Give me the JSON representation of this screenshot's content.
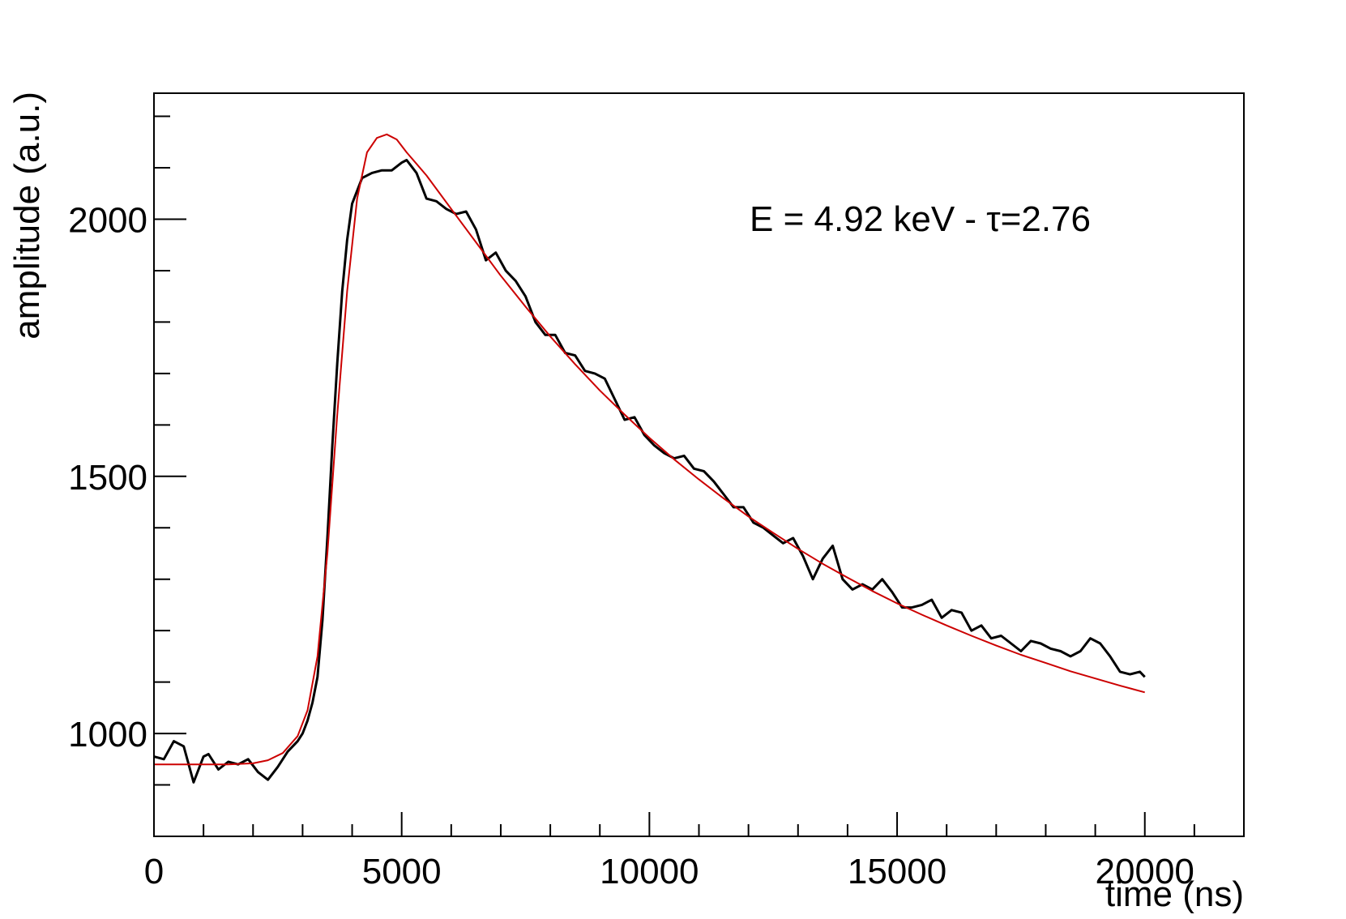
{
  "chart_data": {
    "type": "line",
    "title": "",
    "xlabel": "time (ns)",
    "ylabel": "amplitude (a.u.)",
    "xlim": [
      0,
      22000
    ],
    "ylim": [
      800,
      2245
    ],
    "x_major_ticks": [
      0,
      5000,
      10000,
      15000,
      20000
    ],
    "x_tick_labels": [
      "0",
      "5000",
      "10000",
      "15000",
      "20000"
    ],
    "y_major_ticks": [
      1000,
      1500,
      2000
    ],
    "y_tick_labels": [
      "1000",
      "1500",
      "2000"
    ],
    "annotation": "E = 4.92 keV - τ=2.76",
    "grid": false,
    "series": [
      {
        "role": "data",
        "color": "#000000",
        "points": [
          [
            0,
            955
          ],
          [
            200,
            950
          ],
          [
            400,
            985
          ],
          [
            600,
            975
          ],
          [
            800,
            905
          ],
          [
            1000,
            955
          ],
          [
            1100,
            960
          ],
          [
            1300,
            930
          ],
          [
            1500,
            945
          ],
          [
            1700,
            940
          ],
          [
            1900,
            950
          ],
          [
            2100,
            925
          ],
          [
            2300,
            910
          ],
          [
            2500,
            935
          ],
          [
            2700,
            965
          ],
          [
            2900,
            985
          ],
          [
            3000,
            1000
          ],
          [
            3100,
            1025
          ],
          [
            3200,
            1060
          ],
          [
            3300,
            1110
          ],
          [
            3400,
            1220
          ],
          [
            3500,
            1380
          ],
          [
            3600,
            1560
          ],
          [
            3700,
            1720
          ],
          [
            3800,
            1860
          ],
          [
            3900,
            1960
          ],
          [
            4000,
            2030
          ],
          [
            4200,
            2080
          ],
          [
            4400,
            2090
          ],
          [
            4600,
            2095
          ],
          [
            4800,
            2095
          ],
          [
            5000,
            2110
          ],
          [
            5100,
            2115
          ],
          [
            5300,
            2090
          ],
          [
            5500,
            2040
          ],
          [
            5700,
            2035
          ],
          [
            5900,
            2020
          ],
          [
            6100,
            2010
          ],
          [
            6300,
            2015
          ],
          [
            6500,
            1980
          ],
          [
            6700,
            1920
          ],
          [
            6900,
            1935
          ],
          [
            7100,
            1900
          ],
          [
            7300,
            1880
          ],
          [
            7500,
            1850
          ],
          [
            7700,
            1800
          ],
          [
            7900,
            1775
          ],
          [
            8100,
            1775
          ],
          [
            8300,
            1740
          ],
          [
            8500,
            1735
          ],
          [
            8700,
            1705
          ],
          [
            8900,
            1700
          ],
          [
            9100,
            1690
          ],
          [
            9300,
            1650
          ],
          [
            9500,
            1610
          ],
          [
            9700,
            1615
          ],
          [
            9900,
            1580
          ],
          [
            10100,
            1560
          ],
          [
            10300,
            1545
          ],
          [
            10500,
            1535
          ],
          [
            10700,
            1540
          ],
          [
            10900,
            1515
          ],
          [
            11100,
            1510
          ],
          [
            11300,
            1490
          ],
          [
            11500,
            1465
          ],
          [
            11700,
            1440
          ],
          [
            11900,
            1440
          ],
          [
            12100,
            1410
          ],
          [
            12300,
            1400
          ],
          [
            12500,
            1385
          ],
          [
            12700,
            1370
          ],
          [
            12900,
            1380
          ],
          [
            13100,
            1345
          ],
          [
            13300,
            1300
          ],
          [
            13500,
            1340
          ],
          [
            13700,
            1365
          ],
          [
            13900,
            1300
          ],
          [
            14100,
            1280
          ],
          [
            14300,
            1290
          ],
          [
            14500,
            1280
          ],
          [
            14700,
            1300
          ],
          [
            14900,
            1275
          ],
          [
            15100,
            1245
          ],
          [
            15300,
            1245
          ],
          [
            15500,
            1250
          ],
          [
            15700,
            1260
          ],
          [
            15900,
            1225
          ],
          [
            16100,
            1240
          ],
          [
            16300,
            1235
          ],
          [
            16500,
            1200
          ],
          [
            16700,
            1210
          ],
          [
            16900,
            1185
          ],
          [
            17100,
            1190
          ],
          [
            17300,
            1175
          ],
          [
            17500,
            1160
          ],
          [
            17700,
            1180
          ],
          [
            17900,
            1175
          ],
          [
            18100,
            1165
          ],
          [
            18300,
            1160
          ],
          [
            18500,
            1150
          ],
          [
            18700,
            1160
          ],
          [
            18900,
            1185
          ],
          [
            19100,
            1175
          ],
          [
            19300,
            1150
          ],
          [
            19500,
            1120
          ],
          [
            19700,
            1115
          ],
          [
            19900,
            1120
          ],
          [
            20000,
            1110
          ]
        ]
      },
      {
        "role": "fit",
        "color": "#cc0000",
        "points": [
          [
            0,
            940
          ],
          [
            500,
            940
          ],
          [
            1000,
            940
          ],
          [
            1500,
            940
          ],
          [
            2000,
            942
          ],
          [
            2300,
            948
          ],
          [
            2600,
            962
          ],
          [
            2900,
            995
          ],
          [
            3100,
            1045
          ],
          [
            3300,
            1150
          ],
          [
            3500,
            1350
          ],
          [
            3700,
            1620
          ],
          [
            3900,
            1860
          ],
          [
            4100,
            2040
          ],
          [
            4300,
            2130
          ],
          [
            4500,
            2158
          ],
          [
            4700,
            2165
          ],
          [
            4900,
            2155
          ],
          [
            5100,
            2130
          ],
          [
            5500,
            2085
          ],
          [
            6000,
            2020
          ],
          [
            6500,
            1955
          ],
          [
            7000,
            1890
          ],
          [
            7500,
            1830
          ],
          [
            8000,
            1772
          ],
          [
            8500,
            1718
          ],
          [
            9000,
            1667
          ],
          [
            9500,
            1620
          ],
          [
            10000,
            1575
          ],
          [
            10500,
            1533
          ],
          [
            11000,
            1494
          ],
          [
            11500,
            1457
          ],
          [
            12000,
            1422
          ],
          [
            12500,
            1390
          ],
          [
            13000,
            1359
          ],
          [
            13500,
            1330
          ],
          [
            14000,
            1303
          ],
          [
            14500,
            1277
          ],
          [
            15000,
            1253
          ],
          [
            15500,
            1231
          ],
          [
            16000,
            1210
          ],
          [
            16500,
            1190
          ],
          [
            17000,
            1171
          ],
          [
            17500,
            1153
          ],
          [
            18000,
            1137
          ],
          [
            18500,
            1121
          ],
          [
            19000,
            1107
          ],
          [
            19500,
            1093
          ],
          [
            20000,
            1080
          ]
        ]
      }
    ]
  }
}
